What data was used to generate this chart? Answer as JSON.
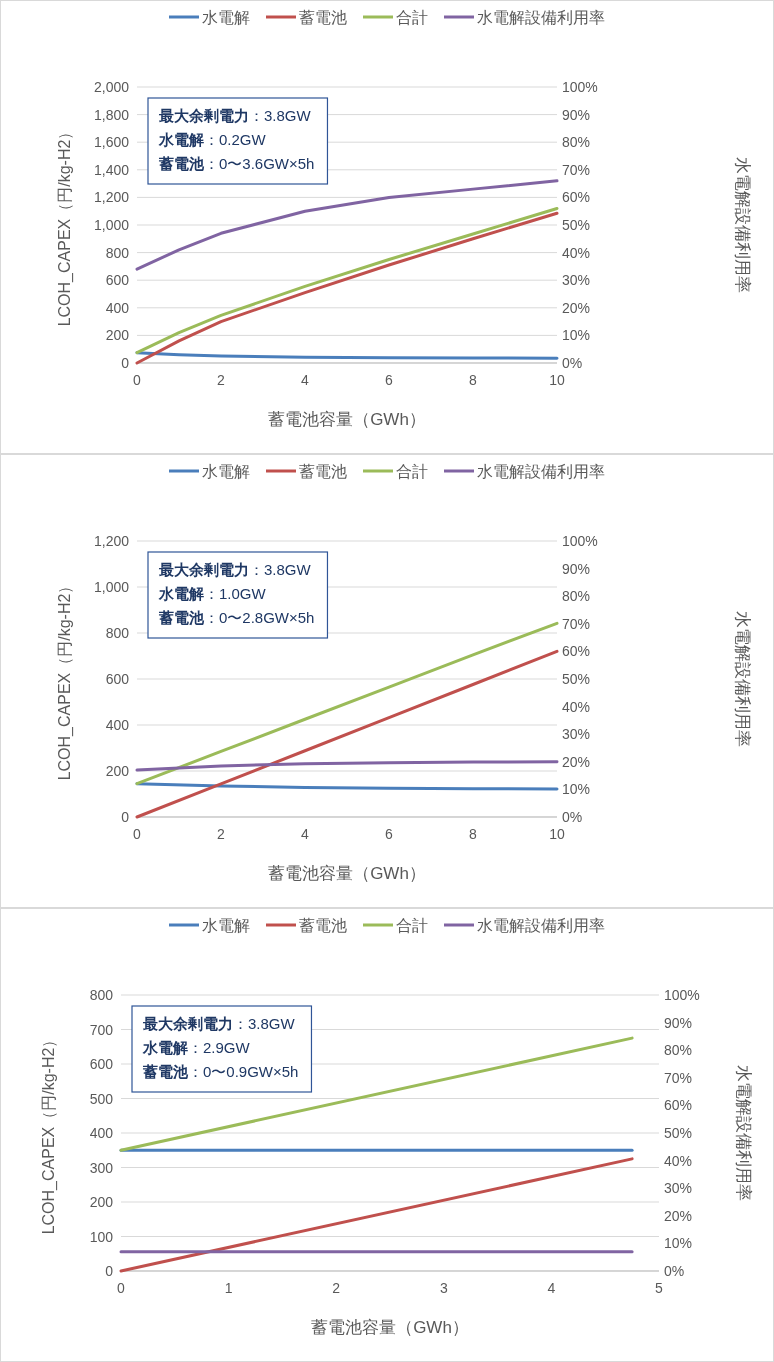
{
  "chart_data": [
    {
      "type": "line",
      "xlabel": "蓄電池容量（GWh）",
      "ylabel": "LCOH_CAPEX（円/kg-H2）",
      "y2label": "水電解設備利用率",
      "legend": "top",
      "grid": "y",
      "xlim": [
        0,
        10
      ],
      "xticks": [
        0,
        2,
        4,
        6,
        8,
        10
      ],
      "ylim": [
        0,
        2000
      ],
      "yticks": [
        0,
        200,
        400,
        600,
        800,
        {
          "value": 1000,
          "label": "1,000"
        },
        {
          "value": 1200,
          "label": "1,200"
        },
        {
          "value": 1400,
          "label": "1,400"
        },
        {
          "value": 1600,
          "label": "1,600"
        },
        {
          "value": 1800,
          "label": "1,800"
        },
        {
          "value": 2000,
          "label": "2,000"
        }
      ],
      "y2lim": [
        0,
        100
      ],
      "y2ticks": [
        {
          "value": 0,
          "label": "0%"
        },
        {
          "value": 10,
          "label": "10%"
        },
        {
          "value": 20,
          "label": "20%"
        },
        {
          "value": 30,
          "label": "30%"
        },
        {
          "value": 40,
          "label": "40%"
        },
        {
          "value": 50,
          "label": "50%"
        },
        {
          "value": 60,
          "label": "60%"
        },
        {
          "value": 70,
          "label": "70%"
        },
        {
          "value": 80,
          "label": "80%"
        },
        {
          "value": 90,
          "label": "90%"
        },
        {
          "value": 100,
          "label": "100%"
        }
      ],
      "x": [
        0,
        1,
        2,
        4,
        6,
        8,
        10
      ],
      "series": [
        {
          "name": "水電解",
          "color": "#4a7ebb",
          "values": [
            75,
            60,
            50,
            42,
            38,
            36,
            35
          ]
        },
        {
          "name": "蓄電池",
          "color": "#c0504d",
          "values": [
            0,
            160,
            300,
            510,
            710,
            900,
            1085
          ]
        },
        {
          "name": "合計",
          "color": "#9bbb59",
          "values": [
            75,
            220,
            345,
            555,
            750,
            935,
            1120
          ]
        },
        {
          "name": "水電解設備利用率",
          "color": "#8064a2",
          "axis": "y2",
          "values": [
            34,
            41,
            47,
            55,
            60,
            63,
            66
          ]
        }
      ],
      "annotations": [
        "**最大余剰電力**：3.8GW",
        "**水電解**：0.2GW",
        "**蓄電池**：0〜3.6GW×5h"
      ]
    },
    {
      "type": "line",
      "xlabel": "蓄電池容量（GWh）",
      "ylabel": "LCOH_CAPEX（円/kg-H2）",
      "y2label": "水電解設備利用率",
      "legend": "top",
      "grid": "y",
      "xlim": [
        0,
        10
      ],
      "xticks": [
        0,
        2,
        4,
        6,
        8,
        10
      ],
      "ylim": [
        0,
        1200
      ],
      "yticks": [
        0,
        200,
        400,
        600,
        800,
        {
          "value": 1000,
          "label": "1,000"
        },
        {
          "value": 1200,
          "label": "1,200"
        }
      ],
      "y2lim": [
        0,
        100
      ],
      "y2ticks": [
        {
          "value": 0,
          "label": "0%"
        },
        {
          "value": 10,
          "label": "10%"
        },
        {
          "value": 20,
          "label": "20%"
        },
        {
          "value": 30,
          "label": "30%"
        },
        {
          "value": 40,
          "label": "40%"
        },
        {
          "value": 50,
          "label": "50%"
        },
        {
          "value": 60,
          "label": "60%"
        },
        {
          "value": 70,
          "label": "70%"
        },
        {
          "value": 80,
          "label": "80%"
        },
        {
          "value": 90,
          "label": "90%"
        },
        {
          "value": 100,
          "label": "100%"
        }
      ],
      "x": [
        0,
        2,
        4,
        6,
        8,
        10
      ],
      "series": [
        {
          "name": "水電解",
          "color": "#4a7ebb",
          "values": [
            145,
            135,
            128,
            125,
            123,
            122
          ]
        },
        {
          "name": "蓄電池",
          "color": "#c0504d",
          "values": [
            0,
            144,
            288,
            432,
            576,
            720
          ]
        },
        {
          "name": "合計",
          "color": "#9bbb59",
          "values": [
            145,
            285,
            425,
            565,
            705,
            842
          ]
        },
        {
          "name": "水電解設備利用率",
          "color": "#8064a2",
          "axis": "y2",
          "values": [
            17,
            18.5,
            19.3,
            19.7,
            19.9,
            20
          ]
        }
      ],
      "annotations": [
        "**最大余剰電力**：3.8GW",
        "**水電解**：1.0GW",
        "**蓄電池**：0〜2.8GW×5h"
      ]
    },
    {
      "type": "line",
      "xlabel": "蓄電池容量（GWh）",
      "ylabel": "LCOH_CAPEX（円/kg-H2）",
      "y2label": "水電解設備利用率",
      "legend": "top",
      "grid": "y",
      "xlim": [
        0,
        5
      ],
      "xticks": [
        0,
        1,
        2,
        3,
        4,
        5
      ],
      "ylim": [
        0,
        800
      ],
      "yticks": [
        0,
        100,
        200,
        300,
        400,
        500,
        600,
        700,
        800
      ],
      "y2lim": [
        0,
        100
      ],
      "y2ticks": [
        {
          "value": 0,
          "label": "0%"
        },
        {
          "value": 10,
          "label": "10%"
        },
        {
          "value": 20,
          "label": "20%"
        },
        {
          "value": 30,
          "label": "30%"
        },
        {
          "value": 40,
          "label": "40%"
        },
        {
          "value": 50,
          "label": "50%"
        },
        {
          "value": 60,
          "label": "60%"
        },
        {
          "value": 70,
          "label": "70%"
        },
        {
          "value": 80,
          "label": "80%"
        },
        {
          "value": 90,
          "label": "90%"
        },
        {
          "value": 100,
          "label": "100%"
        }
      ],
      "x": [
        0,
        4.75
      ],
      "series": [
        {
          "name": "水電解",
          "color": "#4a7ebb",
          "values": [
            350,
            350
          ]
        },
        {
          "name": "蓄電池",
          "color": "#c0504d",
          "values": [
            0,
            325
          ]
        },
        {
          "name": "合計",
          "color": "#9bbb59",
          "values": [
            350,
            675
          ]
        },
        {
          "name": "水電解設備利用率",
          "color": "#8064a2",
          "axis": "y2",
          "values": [
            7,
            7
          ]
        }
      ],
      "annotations": [
        "**最大余剰電力**：3.8GW",
        "**水電解**：2.9GW",
        "**蓄電池**：0〜0.9GW×5h"
      ]
    }
  ]
}
